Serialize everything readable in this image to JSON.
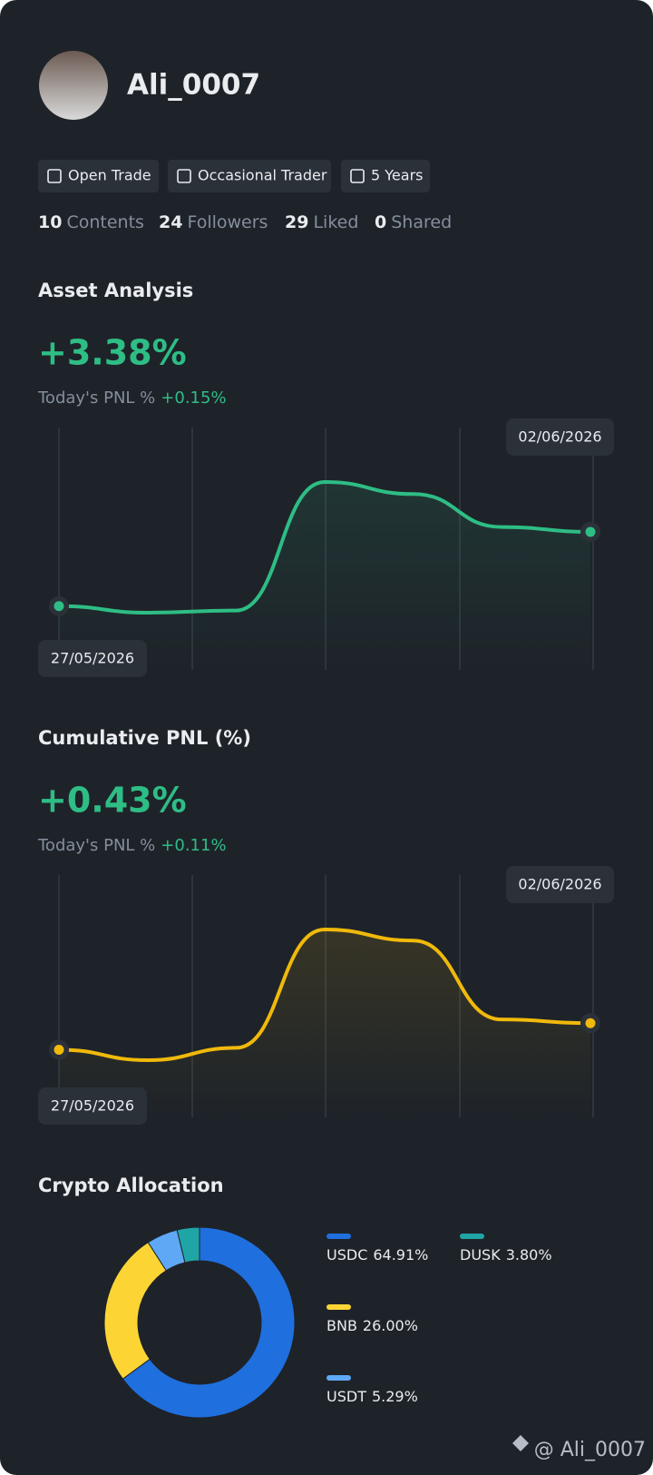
{
  "profile": {
    "username": "Ali_0007",
    "badges": [
      "Open Trade",
      "Occasional Trader",
      "5 Years"
    ],
    "stats": [
      {
        "value": 10,
        "label": "Contents"
      },
      {
        "value": 24,
        "label": "Followers"
      },
      {
        "value": 29,
        "label": "Liked"
      },
      {
        "value": 0,
        "label": "Shared"
      }
    ]
  },
  "chart_data": [
    {
      "type": "line",
      "title": "Asset Analysis",
      "headline": "+3.38%",
      "today_label": "Today's PNL %",
      "today_value": "+0.15%",
      "categories": [
        "27/05/2026",
        null,
        null,
        null,
        null,
        null,
        "02/06/2026"
      ],
      "values": [
        0,
        -0.3,
        -0.2,
        5.65,
        5.1,
        3.6,
        3.38
      ],
      "color": "#2ebd85"
    },
    {
      "type": "line",
      "title": "Cumulative PNL (%)",
      "headline": "+0.43%",
      "today_label": "Today's PNL %",
      "today_value": "+0.11%",
      "categories": [
        "27/05/2026",
        null,
        null,
        null,
        null,
        null,
        "02/06/2026"
      ],
      "values": [
        0,
        -0.17,
        0.03,
        1.95,
        1.77,
        0.49,
        0.43
      ],
      "color": "#f0b90b"
    },
    {
      "type": "donut",
      "title": "Crypto Allocation",
      "categories": [
        "USDC",
        "BNB",
        "USDT",
        "DUSK"
      ],
      "values": [
        64.91,
        26.0,
        5.29,
        3.8
      ],
      "value_labels": [
        "64.91%",
        "26.00%",
        "5.29%",
        "3.80%"
      ],
      "colors": [
        "#1f6fde",
        "#fcd535",
        "#5fa8f5",
        "#1fa5a5"
      ]
    }
  ],
  "watermark": "@ Ali_0007"
}
